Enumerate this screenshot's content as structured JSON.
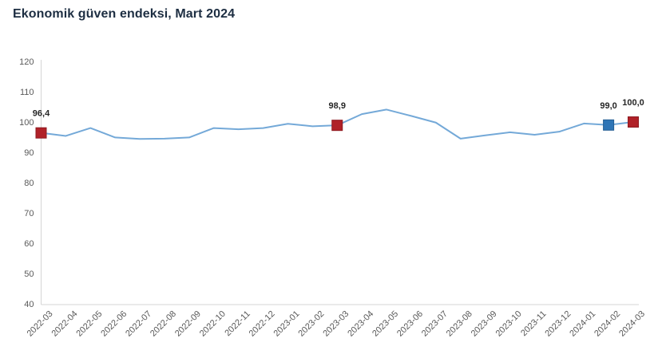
{
  "title": "Ekonomik güven endeksi, Mart 2024",
  "colors": {
    "title": "#1D2E42",
    "background": "#FFFFFF"
  },
  "chart_data": {
    "type": "line",
    "title": "Ekonomik güven endeksi, Mart 2024",
    "categories": [
      "2022-03",
      "2022-04",
      "2022-05",
      "2022-06",
      "2022-07",
      "2022-08",
      "2022-09",
      "2022-10",
      "2022-11",
      "2022-12",
      "2023-01",
      "2023-02",
      "2023-03",
      "2023-04",
      "2023-05",
      "2023-06",
      "2023-07",
      "2023-08",
      "2023-09",
      "2023-10",
      "2023-11",
      "2023-12",
      "2024-01",
      "2024-02",
      "2024-03"
    ],
    "values": [
      96.4,
      95.4,
      98.0,
      94.9,
      94.4,
      94.5,
      94.9,
      98.0,
      97.6,
      98.0,
      99.4,
      98.6,
      98.9,
      102.6,
      104.1,
      102.0,
      99.8,
      94.5,
      95.6,
      96.6,
      95.8,
      96.8,
      99.5,
      99.0,
      100.0
    ],
    "ylim": [
      40,
      120
    ],
    "ytick_step": 10,
    "grid": false,
    "legend": "none",
    "line_color": "#74A9D8",
    "axis_color": "#D6D6D6",
    "tick_label_color": "#595959",
    "data_label_color": "#262626",
    "marked_points": [
      {
        "index": 0,
        "category": "2022-03",
        "label": "96,4",
        "color": "#B02128",
        "border": "#8E1A20"
      },
      {
        "index": 12,
        "category": "2023-03",
        "label": "98,9",
        "color": "#B02128",
        "border": "#8E1A20"
      },
      {
        "index": 23,
        "category": "2024-02",
        "label": "99,0",
        "color": "#2E75B6",
        "border": "#245D92"
      },
      {
        "index": 24,
        "category": "2024-03",
        "label": "100,0",
        "color": "#B02128",
        "border": "#8E1A20"
      }
    ]
  }
}
